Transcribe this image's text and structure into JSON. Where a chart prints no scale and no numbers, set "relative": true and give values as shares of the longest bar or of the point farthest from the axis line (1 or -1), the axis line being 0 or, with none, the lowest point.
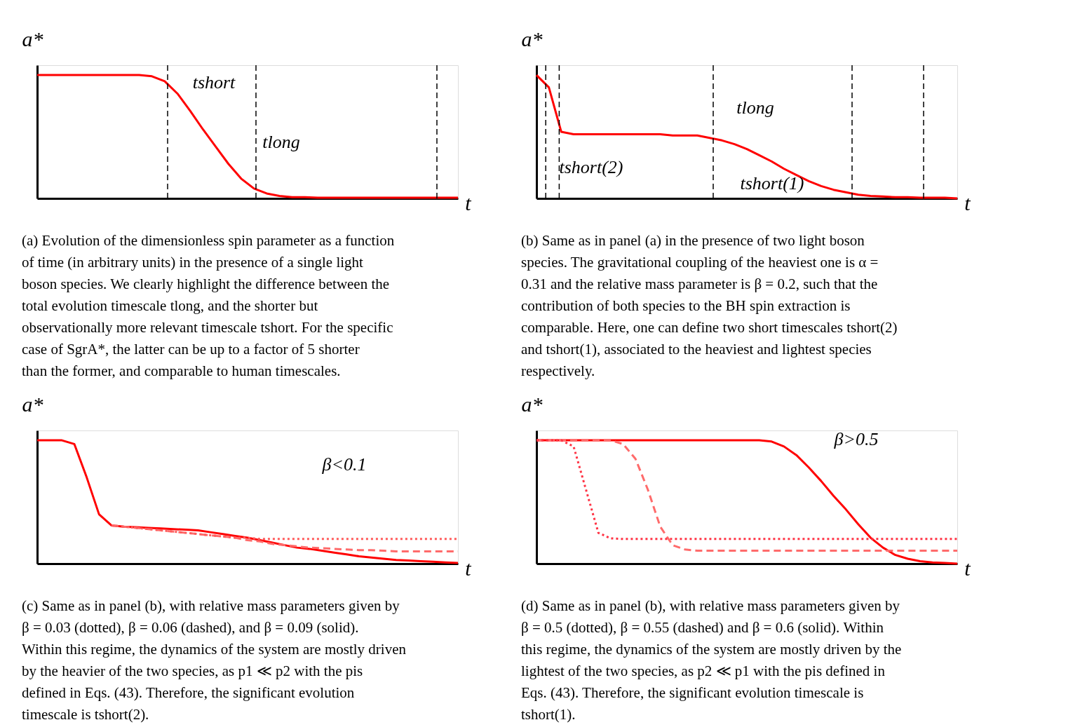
{
  "chart_data": [
    {
      "type": "line",
      "relative": true,
      "xlabel": "t",
      "ylabel": "a*",
      "categories": [
        null,
        null,
        null,
        null,
        null,
        null,
        null,
        null,
        null,
        null,
        null,
        null,
        null,
        null,
        null,
        null,
        null,
        null,
        null,
        null,
        null,
        null,
        null,
        null,
        null,
        null,
        null,
        null,
        null,
        null,
        null,
        null,
        null,
        null
      ],
      "series": [
        {
          "color": "#ff0000",
          "line_style": "solid",
          "values": [
            1,
            1,
            1,
            1,
            1,
            1,
            1,
            1,
            1,
            0.99,
            0.95,
            0.85,
            0.71,
            0.56,
            0.42,
            0.28,
            0.16,
            0.08,
            0.04,
            0.02,
            0.01,
            0.01,
            0.005,
            0.005,
            0.005,
            0.005,
            0.005,
            0.005,
            0.005,
            0.005,
            0.005,
            0.005,
            0.005,
            0.005
          ]
        }
      ],
      "annotations": [
        "tshort",
        "tlong",
        "(a) Evolution of the dimensionless spin parameter as a function of time (in arbitrary units) in the presence of a single light boson species. We clearly highlight the difference between the total evolution timescale tlong, and the shorter but observationally more relevant timescale tshort. For the specific case of SgrA*, the latter can be up to a factor of 5 shorter than the former, and comparable to human timescales."
      ]
    },
    {
      "type": "line",
      "relative": true,
      "xlabel": "t",
      "ylabel": "a*",
      "categories": [
        null,
        null,
        null,
        null,
        null,
        null,
        null,
        null,
        null,
        null,
        null,
        null,
        null,
        null,
        null,
        null,
        null,
        null,
        null,
        null,
        null,
        null,
        null,
        null,
        null,
        null,
        null,
        null,
        null,
        null,
        null,
        null,
        null,
        null,
        null
      ],
      "series": [
        {
          "color": "#ff0000",
          "line_style": "solid",
          "values": [
            1,
            0.9,
            0.54,
            0.52,
            0.52,
            0.52,
            0.52,
            0.52,
            0.52,
            0.52,
            0.52,
            0.51,
            0.51,
            0.51,
            0.49,
            0.47,
            0.44,
            0.4,
            0.35,
            0.3,
            0.24,
            0.19,
            0.14,
            0.1,
            0.07,
            0.05,
            0.03,
            0.02,
            0.015,
            0.01,
            0.01,
            0.005,
            0.005,
            0.005,
            0
          ]
        }
      ],
      "annotations": [
        "tlong",
        "tshort(2)",
        "tshort(1)",
        "(b) Same as in panel (a) in the presence of two light boson species. The gravitational coupling of the heaviest one is α = 0.31 and the relative mass parameter is β = 0.2, such that the contribution of both species to the BH spin extraction is comparable. Here, one can define two short timescales tshort(2) and tshort(1), associated to the heaviest and lightest species respectively."
      ]
    },
    {
      "type": "line",
      "relative": true,
      "xlabel": "t",
      "ylabel": "a*",
      "categories": [
        null,
        null,
        null,
        null,
        null,
        null,
        null,
        null,
        null,
        null,
        null,
        null,
        null,
        null,
        null,
        null,
        null,
        null,
        null,
        null,
        null,
        null,
        null,
        null,
        null,
        null,
        null,
        null,
        null,
        null,
        null,
        null,
        null,
        null,
        null
      ],
      "series": [
        {
          "color": "#ff0000",
          "line_style": "solid",
          "values": [
            1,
            1,
            1,
            0.97,
            0.7,
            0.4,
            0.31,
            0.3,
            0.295,
            0.29,
            0.285,
            0.28,
            0.275,
            0.27,
            0.255,
            0.24,
            0.225,
            0.21,
            0.19,
            0.17,
            0.15,
            0.13,
            0.12,
            0.105,
            0.09,
            0.075,
            0.06,
            0.05,
            0.04,
            0.03,
            0.025,
            0.02,
            0.015,
            0.01,
            0.005
          ]
        },
        {
          "color": "#ff6b6b",
          "line_style": "dashed",
          "values": [
            null,
            null,
            null,
            null,
            null,
            null,
            0.31,
            0.3,
            0.29,
            0.28,
            0.27,
            0.26,
            0.25,
            0.24,
            0.23,
            0.22,
            0.21,
            0.19,
            0.18,
            0.16,
            0.15,
            0.14,
            0.13,
            0.125,
            0.12,
            0.115,
            0.11,
            0.11,
            0.105,
            0.1,
            0.1,
            0.1,
            0.1,
            0.1,
            0.1
          ]
        },
        {
          "color": "#ff5c5c",
          "line_style": "dotted",
          "values": [
            null,
            null,
            null,
            null,
            null,
            null,
            0.31,
            0.3,
            0.29,
            0.28,
            0.27,
            0.26,
            0.25,
            0.24,
            0.23,
            0.22,
            0.21,
            0.21,
            0.2,
            0.2,
            0.2,
            0.2,
            0.2,
            0.2,
            0.2,
            0.2,
            0.2,
            0.2,
            0.2,
            0.2,
            0.2,
            0.2,
            0.2,
            0.2,
            0.2
          ]
        }
      ],
      "annotations": [
        "β<0.1",
        "(c) Same as in panel (b), with relative mass parameters given by β = 0.03 (dotted), β = 0.06 (dashed), and β = 0.09 (solid). Within this regime, the dynamics of the system are mostly driven by the heavier of the two species, as p1 ≪ p2 with the pis defined in Eqs. (43). Therefore, the significant evolution timescale is tshort(2)."
      ]
    },
    {
      "type": "line",
      "relative": true,
      "xlabel": "t",
      "ylabel": "a*",
      "categories": [
        null,
        null,
        null,
        null,
        null,
        null,
        null,
        null,
        null,
        null,
        null,
        null,
        null,
        null,
        null,
        null,
        null,
        null,
        null,
        null,
        null,
        null,
        null,
        null,
        null,
        null,
        null,
        null,
        null,
        null,
        null,
        null,
        null,
        null,
        null
      ],
      "series": [
        {
          "color": "#ff0000",
          "line_style": "solid",
          "values": [
            1,
            1,
            1,
            1,
            1,
            1,
            1,
            1,
            1,
            1,
            1,
            1,
            1,
            1,
            1,
            1,
            1,
            1,
            1,
            0.99,
            0.95,
            0.88,
            0.78,
            0.67,
            0.55,
            0.44,
            0.32,
            0.21,
            0.13,
            0.07,
            0.04,
            0.02,
            0.01,
            0.005,
            0
          ]
        },
        {
          "color": "#ff6b6b",
          "line_style": "dashed",
          "values": [
            1,
            1,
            1,
            1,
            1,
            1,
            1,
            0.97,
            0.85,
            0.6,
            0.3,
            0.15,
            0.115,
            0.105,
            0.105,
            0.105,
            0.105,
            0.105,
            0.105,
            0.105,
            0.105,
            0.105,
            0.105,
            0.105,
            0.105,
            0.105,
            0.105,
            0.105,
            0.105,
            0.105,
            0.105,
            0.105,
            0.105,
            0.105,
            0.105
          ]
        },
        {
          "color": "#ff3344",
          "line_style": "dotted",
          "values": [
            1,
            1,
            1,
            0.95,
            0.6,
            0.25,
            0.205,
            0.2,
            0.2,
            0.2,
            0.2,
            0.2,
            0.2,
            0.2,
            0.2,
            0.2,
            0.2,
            0.2,
            0.2,
            0.2,
            0.2,
            0.2,
            0.2,
            0.2,
            0.2,
            0.2,
            0.2,
            0.2,
            0.2,
            0.2,
            0.2,
            0.2,
            0.2,
            0.2,
            0.2
          ]
        }
      ],
      "annotations": [
        "β>0.5",
        "(d) Same as in panel (b), with relative mass parameters given by β = 0.5 (dotted), β = 0.55 (dashed) and β = 0.6 (solid). Within this regime, the dynamics of the system are mostly driven by the lightest of the two species, as p2 ≪ p1 with the pis defined in Eqs. (43). Therefore, the significant evolution timescale is tshort(1)."
      ]
    }
  ]
}
